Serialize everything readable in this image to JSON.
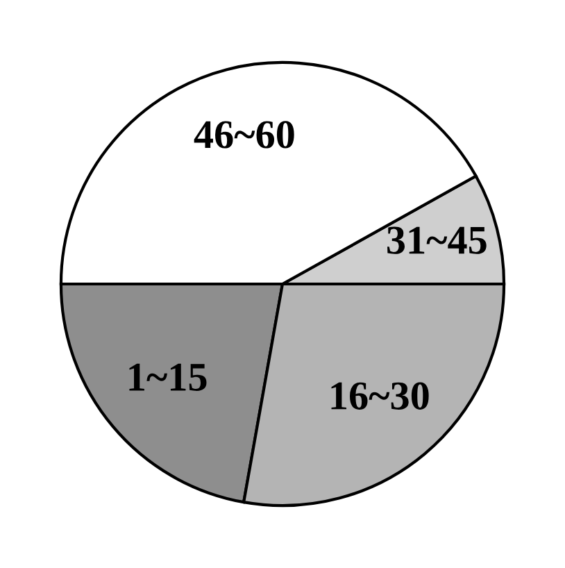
{
  "chart_data": {
    "type": "pie",
    "categories": [
      "31~45",
      "46~60",
      "1~15",
      "16~30"
    ],
    "values": [
      8.1,
      41.9,
      22.2,
      27.8
    ],
    "colors": [
      "#cfcfcf",
      "#ffffff",
      "#8e8e8e",
      "#b4b4b4"
    ]
  }
}
